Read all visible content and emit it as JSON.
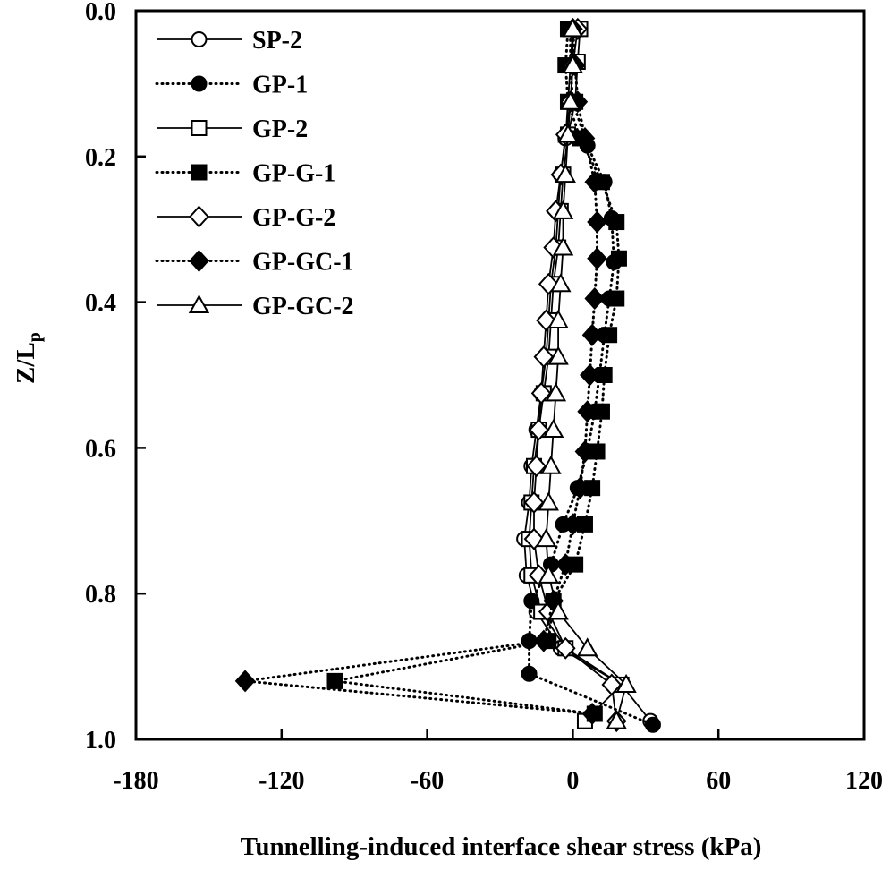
{
  "chart_data": {
    "type": "line",
    "title": "",
    "xlabel": "Tunnelling-induced interface shear stress (kPa)",
    "ylabel": "Z/L",
    "ylabel_subscript": "p",
    "xlim": [
      -180,
      120
    ],
    "ylim": [
      0.0,
      1.0
    ],
    "y_inverted": true,
    "grid": false,
    "legend_position": "top-left",
    "x_ticks": [
      -180,
      -120,
      -60,
      0,
      60,
      120
    ],
    "y_ticks": [
      0.0,
      0.2,
      0.4,
      0.6,
      0.8,
      1.0
    ],
    "x_tick_labels": [
      "-180",
      "-120",
      "-60",
      "0",
      "60",
      "120"
    ],
    "y_tick_labels": [
      "0.0",
      "0.2",
      "0.4",
      "0.6",
      "0.8",
      "1.0"
    ],
    "series": [
      {
        "name": "SP-2",
        "line": "solid",
        "marker": "circle",
        "filled": false,
        "color": "#000000",
        "points": [
          [
            0,
            0.025
          ],
          [
            -1,
            0.075
          ],
          [
            -2,
            0.125
          ],
          [
            -3,
            0.175
          ],
          [
            -5,
            0.225
          ],
          [
            -6,
            0.275
          ],
          [
            -7,
            0.325
          ],
          [
            -9,
            0.375
          ],
          [
            -10,
            0.425
          ],
          [
            -11,
            0.475
          ],
          [
            -13,
            0.525
          ],
          [
            -15,
            0.575
          ],
          [
            -17,
            0.625
          ],
          [
            -18,
            0.675
          ],
          [
            -20,
            0.725
          ],
          [
            -19,
            0.775
          ],
          [
            -15,
            0.825
          ],
          [
            -5,
            0.875
          ],
          [
            20,
            0.925
          ],
          [
            32,
            0.975
          ]
        ]
      },
      {
        "name": "GP-1",
        "line": "dotted",
        "marker": "circle",
        "filled": true,
        "color": "#000000",
        "points": [
          [
            -1,
            0.025
          ],
          [
            -1,
            0.075
          ],
          [
            0,
            0.125
          ],
          [
            6,
            0.185
          ],
          [
            13,
            0.235
          ],
          [
            16,
            0.285
          ],
          [
            17,
            0.345
          ],
          [
            15,
            0.395
          ],
          [
            13,
            0.445
          ],
          [
            11,
            0.5
          ],
          [
            9,
            0.55
          ],
          [
            6,
            0.605
          ],
          [
            2,
            0.655
          ],
          [
            -4,
            0.705
          ],
          [
            -9,
            0.76
          ],
          [
            -17,
            0.81
          ],
          [
            -18,
            0.865
          ],
          [
            -18,
            0.91
          ],
          [
            33,
            0.98
          ]
        ]
      },
      {
        "name": "GP-2",
        "line": "solid",
        "marker": "square",
        "filled": false,
        "color": "#000000",
        "points": [
          [
            3,
            0.025
          ],
          [
            2,
            0.07
          ],
          [
            1,
            0.125
          ],
          [
            -2,
            0.17
          ],
          [
            -4,
            0.225
          ],
          [
            -5,
            0.275
          ],
          [
            -6,
            0.325
          ],
          [
            -8,
            0.375
          ],
          [
            -9,
            0.425
          ],
          [
            -10,
            0.475
          ],
          [
            -12,
            0.525
          ],
          [
            -14,
            0.575
          ],
          [
            -16,
            0.625
          ],
          [
            -17,
            0.675
          ],
          [
            -18,
            0.725
          ],
          [
            -17,
            0.775
          ],
          [
            -13,
            0.825
          ],
          [
            -3,
            0.875
          ],
          [
            20,
            0.925
          ],
          [
            5,
            0.975
          ]
        ]
      },
      {
        "name": "GP-G-1",
        "line": "dotted",
        "marker": "square",
        "filled": true,
        "color": "#000000",
        "points": [
          [
            -2,
            0.025
          ],
          [
            -3,
            0.075
          ],
          [
            -2,
            0.125
          ],
          [
            3,
            0.175
          ],
          [
            12,
            0.235
          ],
          [
            18,
            0.29
          ],
          [
            19,
            0.34
          ],
          [
            18,
            0.395
          ],
          [
            15,
            0.445
          ],
          [
            13,
            0.5
          ],
          [
            12,
            0.55
          ],
          [
            10,
            0.605
          ],
          [
            8,
            0.655
          ],
          [
            5,
            0.705
          ],
          [
            1,
            0.76
          ],
          [
            -8,
            0.81
          ],
          [
            -10,
            0.865
          ],
          [
            -98,
            0.92
          ],
          [
            9,
            0.965
          ]
        ]
      },
      {
        "name": "GP-G-2",
        "line": "solid",
        "marker": "diamond",
        "filled": false,
        "color": "#000000",
        "points": [
          [
            2,
            0.025
          ],
          [
            0,
            0.075
          ],
          [
            -1,
            0.125
          ],
          [
            -3,
            0.17
          ],
          [
            -5,
            0.225
          ],
          [
            -7,
            0.275
          ],
          [
            -8,
            0.325
          ],
          [
            -10,
            0.375
          ],
          [
            -11,
            0.425
          ],
          [
            -12,
            0.475
          ],
          [
            -13,
            0.525
          ],
          [
            -14,
            0.575
          ],
          [
            -15,
            0.625
          ],
          [
            -16,
            0.675
          ],
          [
            -16,
            0.725
          ],
          [
            -14,
            0.775
          ],
          [
            -10,
            0.825
          ],
          [
            -3,
            0.875
          ],
          [
            16,
            0.925
          ],
          [
            18,
            0.975
          ]
        ]
      },
      {
        "name": "GP-GC-1",
        "line": "dotted",
        "marker": "diamond",
        "filled": true,
        "color": "#000000",
        "points": [
          [
            0,
            0.025
          ],
          [
            1,
            0.075
          ],
          [
            2,
            0.125
          ],
          [
            5,
            0.175
          ],
          [
            9,
            0.235
          ],
          [
            10,
            0.29
          ],
          [
            10,
            0.34
          ],
          [
            9,
            0.395
          ],
          [
            8,
            0.445
          ],
          [
            7,
            0.5
          ],
          [
            6,
            0.55
          ],
          [
            5,
            0.605
          ],
          [
            3,
            0.655
          ],
          [
            0,
            0.705
          ],
          [
            -3,
            0.76
          ],
          [
            -8,
            0.81
          ],
          [
            -12,
            0.865
          ],
          [
            -135,
            0.92
          ],
          [
            8,
            0.965
          ]
        ]
      },
      {
        "name": "GP-GC-2",
        "line": "solid",
        "marker": "triangle",
        "filled": false,
        "color": "#000000",
        "points": [
          [
            0,
            0.025
          ],
          [
            0,
            0.075
          ],
          [
            -1,
            0.125
          ],
          [
            -2,
            0.17
          ],
          [
            -3,
            0.225
          ],
          [
            -4,
            0.275
          ],
          [
            -4,
            0.325
          ],
          [
            -5,
            0.375
          ],
          [
            -6,
            0.425
          ],
          [
            -6,
            0.475
          ],
          [
            -7,
            0.525
          ],
          [
            -8,
            0.575
          ],
          [
            -9,
            0.625
          ],
          [
            -10,
            0.675
          ],
          [
            -11,
            0.725
          ],
          [
            -10,
            0.775
          ],
          [
            -6,
            0.825
          ],
          [
            6,
            0.875
          ],
          [
            22,
            0.925
          ],
          [
            18,
            0.975
          ]
        ]
      }
    ]
  }
}
